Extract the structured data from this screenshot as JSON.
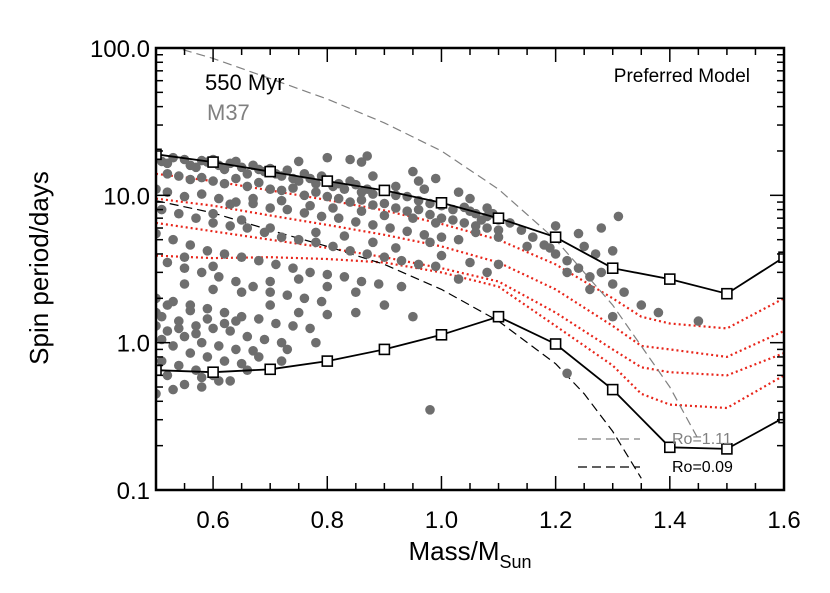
{
  "chart_data": {
    "type": "scatter",
    "title": "Preferred Model",
    "annotation_age": "550 Myr",
    "annotation_cluster": "M37",
    "xlabel": "Mass/M",
    "xlabel_sub": "Sun",
    "ylabel": "Spin period/days",
    "xlim": [
      0.5,
      1.6
    ],
    "ylim": [
      0.1,
      100
    ],
    "yscale": "log",
    "xticks": [
      {
        "value": 0.6,
        "label": "0.6"
      },
      {
        "value": 0.8,
        "label": "0.8"
      },
      {
        "value": 1.0,
        "label": "1.0"
      },
      {
        "value": 1.2,
        "label": "1.2"
      },
      {
        "value": 1.4,
        "label": "1.4"
      },
      {
        "value": 1.6,
        "label": "1.6"
      }
    ],
    "yticks": [
      {
        "value": 0.1,
        "label": "0.1"
      },
      {
        "value": 1.0,
        "label": "1.0"
      },
      {
        "value": 10.0,
        "label": "10.0"
      },
      {
        "value": 100.0,
        "label": "100.0"
      }
    ],
    "colors": {
      "points": "#6e6e6e",
      "model": "#000000",
      "percentiles": "#e8251a",
      "ro_high": "#808080",
      "ro_low": "#000000"
    },
    "legend": [
      {
        "label": "Ro=1.11",
        "color": "#808080",
        "style": "long-dash"
      },
      {
        "label": "Ro=0.09",
        "color": "#000000",
        "style": "dash"
      }
    ],
    "series": [
      {
        "kind": "model-upper",
        "x": [
          0.5,
          0.6,
          0.7,
          0.8,
          0.9,
          1.0,
          1.1,
          1.2,
          1.3,
          1.4,
          1.5,
          1.6
        ],
        "y": [
          19.0,
          16.8,
          14.5,
          12.5,
          10.8,
          8.9,
          7.0,
          5.2,
          3.2,
          2.7,
          2.15,
          3.8
        ]
      },
      {
        "kind": "model-lower",
        "x": [
          0.5,
          0.6,
          0.7,
          0.8,
          0.9,
          1.0,
          1.1,
          1.2,
          1.3,
          1.4,
          1.5,
          1.6
        ],
        "y": [
          0.65,
          0.63,
          0.66,
          0.75,
          0.9,
          1.13,
          1.5,
          0.98,
          0.48,
          0.195,
          0.19,
          0.31
        ]
      },
      {
        "kind": "percentile",
        "x": [
          0.5,
          0.6,
          0.7,
          0.8,
          0.9,
          1.0,
          1.1,
          1.2,
          1.3,
          1.35,
          1.4,
          1.5,
          1.6
        ],
        "y": [
          14.0,
          12.5,
          10.8,
          9.3,
          7.9,
          6.4,
          5.0,
          3.4,
          2.0,
          1.5,
          1.35,
          1.25,
          2.0
        ]
      },
      {
        "kind": "percentile",
        "x": [
          0.5,
          0.6,
          0.7,
          0.8,
          0.9,
          1.0,
          1.1,
          1.2,
          1.3,
          1.35,
          1.4,
          1.5,
          1.6
        ],
        "y": [
          9.5,
          8.5,
          7.3,
          6.3,
          5.4,
          4.5,
          3.5,
          2.3,
          1.3,
          0.95,
          0.9,
          0.8,
          1.2
        ]
      },
      {
        "kind": "percentile",
        "x": [
          0.5,
          0.6,
          0.7,
          0.8,
          0.9,
          1.0,
          1.1,
          1.2,
          1.3,
          1.35,
          1.4,
          1.5,
          1.6
        ],
        "y": [
          6.5,
          5.7,
          5.0,
          4.4,
          3.8,
          3.2,
          2.6,
          1.6,
          0.9,
          0.68,
          0.63,
          0.6,
          0.85
        ]
      },
      {
        "kind": "percentile",
        "x": [
          0.5,
          0.6,
          0.7,
          0.8,
          0.9,
          1.0,
          1.1,
          1.2,
          1.3,
          1.35,
          1.4,
          1.5,
          1.6
        ],
        "y": [
          3.9,
          3.75,
          3.8,
          3.7,
          3.5,
          3.0,
          2.4,
          1.3,
          0.7,
          0.45,
          0.38,
          0.36,
          0.6
        ]
      },
      {
        "kind": "ro-high",
        "x": [
          0.5,
          0.6,
          0.7,
          0.8,
          0.9,
          1.0,
          1.1,
          1.2,
          1.3,
          1.4,
          1.45
        ],
        "y": [
          110,
          85,
          62,
          45,
          31,
          20,
          11,
          5.0,
          1.8,
          0.5,
          0.22
        ]
      },
      {
        "kind": "ro-low",
        "x": [
          0.5,
          0.6,
          0.7,
          0.8,
          0.9,
          1.0,
          1.1,
          1.2,
          1.25,
          1.3,
          1.35
        ],
        "y": [
          9.2,
          7.6,
          5.8,
          4.5,
          3.4,
          2.3,
          1.4,
          0.72,
          0.45,
          0.25,
          0.12
        ]
      }
    ],
    "points": [
      [
        0.5,
        18.5
      ],
      [
        0.51,
        17.0
      ],
      [
        0.52,
        16.5
      ],
      [
        0.53,
        18.0
      ],
      [
        0.55,
        17.5
      ],
      [
        0.56,
        16.0
      ],
      [
        0.57,
        15.5
      ],
      [
        0.58,
        17.2
      ],
      [
        0.59,
        16.8
      ],
      [
        0.6,
        17.5
      ],
      [
        0.61,
        16.0
      ],
      [
        0.62,
        15.0
      ],
      [
        0.63,
        16.5
      ],
      [
        0.64,
        17.0
      ],
      [
        0.65,
        15.5
      ],
      [
        0.66,
        14.0
      ],
      [
        0.67,
        16.0
      ],
      [
        0.68,
        15.0
      ],
      [
        0.69,
        14.5
      ],
      [
        0.7,
        15.2
      ],
      [
        0.71,
        14.0
      ],
      [
        0.72,
        13.5
      ],
      [
        0.73,
        14.8
      ],
      [
        0.74,
        13.0
      ],
      [
        0.75,
        12.5
      ],
      [
        0.76,
        14.0
      ],
      [
        0.77,
        13.0
      ],
      [
        0.78,
        12.0
      ],
      [
        0.79,
        13.5
      ],
      [
        0.8,
        12.5
      ],
      [
        0.81,
        11.5
      ],
      [
        0.82,
        12.0
      ],
      [
        0.83,
        11.0
      ],
      [
        0.84,
        12.5
      ],
      [
        0.85,
        11.8
      ],
      [
        0.86,
        10.5
      ],
      [
        0.87,
        11.0
      ],
      [
        0.88,
        10.2
      ],
      [
        0.9,
        10.8
      ],
      [
        0.92,
        10.0
      ],
      [
        0.94,
        9.8
      ],
      [
        0.96,
        9.2
      ],
      [
        0.98,
        8.8
      ],
      [
        1.0,
        8.5
      ],
      [
        1.02,
        8.0
      ],
      [
        1.04,
        8.3
      ],
      [
        1.06,
        7.5
      ],
      [
        1.08,
        7.2
      ],
      [
        1.1,
        6.8
      ],
      [
        0.52,
        14.0
      ],
      [
        0.54,
        13.5
      ],
      [
        0.56,
        12.8
      ],
      [
        0.58,
        13.2
      ],
      [
        0.6,
        12.5
      ],
      [
        0.62,
        12.0
      ],
      [
        0.64,
        13.0
      ],
      [
        0.66,
        11.5
      ],
      [
        0.68,
        12.2
      ],
      [
        0.7,
        11.0
      ],
      [
        0.72,
        10.8
      ],
      [
        0.74,
        11.2
      ],
      [
        0.76,
        10.0
      ],
      [
        0.78,
        10.5
      ],
      [
        0.8,
        9.8
      ],
      [
        0.82,
        9.5
      ],
      [
        0.84,
        9.0
      ],
      [
        0.86,
        9.3
      ],
      [
        0.88,
        8.6
      ],
      [
        0.9,
        8.8
      ],
      [
        0.92,
        8.2
      ],
      [
        0.94,
        7.8
      ],
      [
        0.96,
        8.0
      ],
      [
        0.98,
        7.4
      ],
      [
        1.0,
        7.0
      ],
      [
        1.02,
        6.8
      ],
      [
        1.04,
        6.5
      ],
      [
        1.06,
        6.2
      ],
      [
        1.08,
        6.0
      ],
      [
        1.1,
        5.8
      ],
      [
        0.5,
        11.0
      ],
      [
        0.52,
        10.5
      ],
      [
        0.55,
        9.8
      ],
      [
        0.58,
        10.2
      ],
      [
        0.61,
        9.5
      ],
      [
        0.64,
        9.0
      ],
      [
        0.67,
        8.8
      ],
      [
        0.7,
        8.2
      ],
      [
        0.73,
        8.0
      ],
      [
        0.76,
        7.6
      ],
      [
        0.79,
        7.2
      ],
      [
        0.82,
        7.0
      ],
      [
        0.85,
        6.6
      ],
      [
        0.88,
        6.3
      ],
      [
        0.91,
        6.0
      ],
      [
        0.94,
        5.7
      ],
      [
        0.97,
        5.4
      ],
      [
        1.0,
        5.2
      ],
      [
        1.03,
        5.0
      ],
      [
        0.51,
        8.0
      ],
      [
        0.54,
        7.5
      ],
      [
        0.57,
        7.0
      ],
      [
        0.6,
        6.5
      ],
      [
        0.63,
        6.2
      ],
      [
        0.66,
        6.0
      ],
      [
        0.69,
        5.6
      ],
      [
        0.72,
        5.2
      ],
      [
        0.75,
        5.0
      ],
      [
        0.78,
        4.8
      ],
      [
        0.81,
        4.5
      ],
      [
        0.84,
        4.2
      ],
      [
        0.87,
        4.0
      ],
      [
        0.9,
        3.8
      ],
      [
        0.93,
        3.6
      ],
      [
        0.96,
        3.4
      ],
      [
        0.99,
        3.3
      ],
      [
        0.5,
        5.5
      ],
      [
        0.53,
        5.0
      ],
      [
        0.56,
        4.6
      ],
      [
        0.59,
        4.2
      ],
      [
        0.62,
        4.0
      ],
      [
        0.65,
        3.8
      ],
      [
        0.68,
        3.6
      ],
      [
        0.71,
        3.4
      ],
      [
        0.74,
        3.2
      ],
      [
        0.77,
        3.0
      ],
      [
        0.8,
        2.9
      ],
      [
        0.83,
        2.8
      ],
      [
        0.86,
        2.6
      ],
      [
        0.89,
        2.5
      ],
      [
        0.52,
        3.5
      ],
      [
        0.55,
        3.2
      ],
      [
        0.58,
        3.0
      ],
      [
        0.61,
        2.8
      ],
      [
        0.64,
        2.6
      ],
      [
        0.67,
        2.4
      ],
      [
        0.7,
        2.2
      ],
      [
        0.73,
        2.1
      ],
      [
        0.76,
        2.0
      ],
      [
        0.79,
        1.9
      ],
      [
        0.5,
        2.0
      ],
      [
        0.53,
        1.9
      ],
      [
        0.56,
        1.8
      ],
      [
        0.59,
        1.7
      ],
      [
        0.62,
        1.6
      ],
      [
        0.65,
        1.5
      ],
      [
        0.68,
        1.45
      ],
      [
        0.71,
        1.35
      ],
      [
        0.74,
        1.3
      ],
      [
        0.77,
        1.25
      ],
      [
        0.51,
        1.5
      ],
      [
        0.54,
        1.4
      ],
      [
        0.57,
        1.3
      ],
      [
        0.6,
        1.25
      ],
      [
        0.63,
        1.2
      ],
      [
        0.66,
        1.1
      ],
      [
        0.69,
        1.05
      ],
      [
        0.72,
        1.0
      ],
      [
        0.52,
        1.2
      ],
      [
        0.55,
        1.1
      ],
      [
        0.58,
        1.0
      ],
      [
        0.61,
        0.95
      ],
      [
        0.64,
        0.9
      ],
      [
        0.67,
        0.88
      ],
      [
        0.53,
        0.95
      ],
      [
        0.56,
        0.85
      ],
      [
        0.59,
        0.8
      ],
      [
        0.62,
        0.75
      ],
      [
        0.65,
        0.72
      ],
      [
        0.51,
        0.75
      ],
      [
        0.54,
        0.7
      ],
      [
        0.57,
        0.65
      ],
      [
        0.6,
        0.6
      ],
      [
        0.63,
        0.55
      ],
      [
        0.5,
        0.45
      ],
      [
        0.58,
        0.5
      ],
      [
        0.61,
        0.55
      ],
      [
        0.98,
        0.35
      ],
      [
        1.05,
        7.8
      ],
      [
        1.07,
        6.8
      ],
      [
        1.09,
        7.5
      ],
      [
        1.12,
        6.5
      ],
      [
        1.14,
        5.8
      ],
      [
        1.16,
        5.2
      ],
      [
        1.18,
        4.6
      ],
      [
        1.2,
        4.0
      ],
      [
        1.22,
        3.6
      ],
      [
        1.24,
        3.2
      ],
      [
        1.26,
        2.8
      ],
      [
        1.28,
        3.0
      ],
      [
        1.3,
        2.5
      ],
      [
        1.32,
        2.2
      ],
      [
        1.35,
        1.8
      ],
      [
        1.38,
        1.6
      ],
      [
        1.45,
        1.4
      ],
      [
        1.2,
        6.2
      ],
      [
        1.24,
        5.5
      ],
      [
        1.25,
        4.5
      ],
      [
        1.27,
        4.0
      ],
      [
        1.22,
        3.0
      ],
      [
        1.26,
        2.3
      ],
      [
        1.31,
        7.2
      ],
      [
        1.3,
        4.2
      ],
      [
        1.28,
        6.0
      ],
      [
        1.19,
        4.4
      ],
      [
        1.15,
        4.5
      ],
      [
        1.22,
        0.62
      ],
      [
        1.3,
        1.5
      ],
      [
        0.86,
        16.8
      ],
      [
        0.87,
        18.5
      ],
      [
        0.84,
        17.5
      ],
      [
        0.8,
        18.0
      ],
      [
        0.75,
        17.0
      ],
      [
        0.88,
        13.5
      ],
      [
        0.95,
        14.5
      ],
      [
        0.96,
        12.5
      ],
      [
        0.92,
        11.5
      ],
      [
        0.97,
        11.0
      ],
      [
        0.99,
        13.0
      ],
      [
        1.03,
        10.5
      ],
      [
        1.05,
        9.5
      ],
      [
        1.08,
        8.2
      ],
      [
        0.55,
        3.8
      ],
      [
        0.6,
        3.3
      ],
      [
        0.65,
        2.2
      ],
      [
        0.7,
        1.8
      ],
      [
        0.75,
        1.6
      ],
      [
        0.8,
        1.55
      ],
      [
        0.85,
        1.6
      ],
      [
        0.9,
        1.8
      ],
      [
        0.93,
        2.4
      ],
      [
        0.55,
        2.5
      ],
      [
        0.6,
        2.3
      ],
      [
        0.7,
        2.6
      ],
      [
        0.75,
        2.7
      ],
      [
        0.8,
        2.4
      ],
      [
        0.85,
        2.2
      ],
      [
        0.95,
        1.5
      ],
      [
        0.72,
        0.75
      ],
      [
        0.68,
        0.8
      ],
      [
        0.73,
        0.9
      ],
      [
        0.78,
        1.0
      ],
      [
        0.66,
        0.65
      ],
      [
        0.64,
        1.4
      ],
      [
        0.58,
        0.58
      ],
      [
        0.56,
        1.65
      ],
      [
        0.52,
        1.8
      ],
      [
        0.5,
        1.6
      ],
      [
        0.52,
        0.6
      ],
      [
        0.55,
        0.52
      ],
      [
        0.53,
        0.48
      ],
      [
        0.5,
        1.3
      ],
      [
        0.51,
        1.05
      ],
      [
        0.54,
        1.25
      ],
      [
        0.57,
        1.15
      ],
      [
        0.59,
        1.45
      ],
      [
        0.62,
        1.35
      ],
      [
        0.6,
        7.5
      ],
      [
        0.65,
        6.8
      ],
      [
        0.7,
        6.0
      ],
      [
        0.78,
        5.6
      ],
      [
        0.83,
        5.3
      ],
      [
        0.88,
        4.8
      ],
      [
        0.92,
        4.4
      ],
      [
        1.0,
        3.9
      ],
      [
        1.05,
        3.5
      ],
      [
        1.08,
        3.0
      ],
      [
        1.03,
        2.7
      ],
      [
        1.1,
        3.4
      ],
      [
        0.98,
        4.8
      ],
      [
        0.63,
        8.7
      ],
      [
        0.67,
        9.5
      ],
      [
        0.72,
        9.2
      ],
      [
        0.77,
        8.5
      ],
      [
        0.81,
        8.2
      ],
      [
        0.86,
        7.8
      ],
      [
        0.9,
        7.3
      ],
      [
        0.95,
        7.0
      ],
      [
        0.99,
        6.5
      ],
      [
        1.06,
        5.6
      ],
      [
        1.1,
        5.2
      ]
    ]
  }
}
